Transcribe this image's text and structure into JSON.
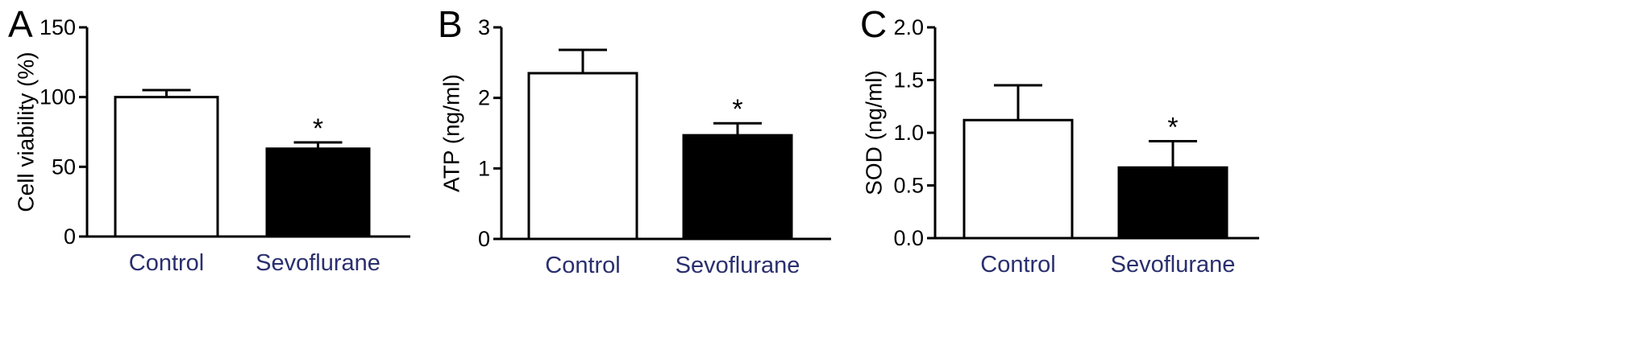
{
  "chart_data": [
    {
      "type": "bar",
      "panel": "A",
      "ylabel": "Cell viability (%)",
      "ylim": [
        0,
        150
      ],
      "yticks": [
        0,
        50,
        100,
        150
      ],
      "categories": [
        "Control",
        "Sevoflurane"
      ],
      "values": [
        100,
        63
      ],
      "errors": [
        5,
        4.5
      ],
      "bar_fill": [
        "#ffffff",
        "#000000"
      ],
      "annotations": [
        {
          "category": "Sevoflurane",
          "text": "*"
        }
      ]
    },
    {
      "type": "bar",
      "panel": "B",
      "ylabel": "ATP (ng/ml)",
      "ylim": [
        0,
        3
      ],
      "yticks": [
        0,
        1,
        2,
        3
      ],
      "categories": [
        "Control",
        "Sevoflurane"
      ],
      "values": [
        2.35,
        1.47
      ],
      "errors": [
        0.33,
        0.17
      ],
      "bar_fill": [
        "#ffffff",
        "#000000"
      ],
      "annotations": [
        {
          "category": "Sevoflurane",
          "text": "*"
        }
      ]
    },
    {
      "type": "bar",
      "panel": "C",
      "ylabel": "SOD (ng/ml)",
      "ylim": [
        0,
        2
      ],
      "yticks": [
        "0.0",
        "0.5",
        "1.0",
        "1.5",
        "2.0"
      ],
      "categories": [
        "Control",
        "Sevoflurane"
      ],
      "values": [
        1.12,
        0.67
      ],
      "errors": [
        0.33,
        0.25
      ],
      "bar_fill": [
        "#ffffff",
        "#000000"
      ],
      "annotations": [
        {
          "category": "Sevoflurane",
          "text": "*"
        }
      ]
    }
  ],
  "colors": {
    "axis": "#000000",
    "category_text": "#2a2f6e"
  }
}
